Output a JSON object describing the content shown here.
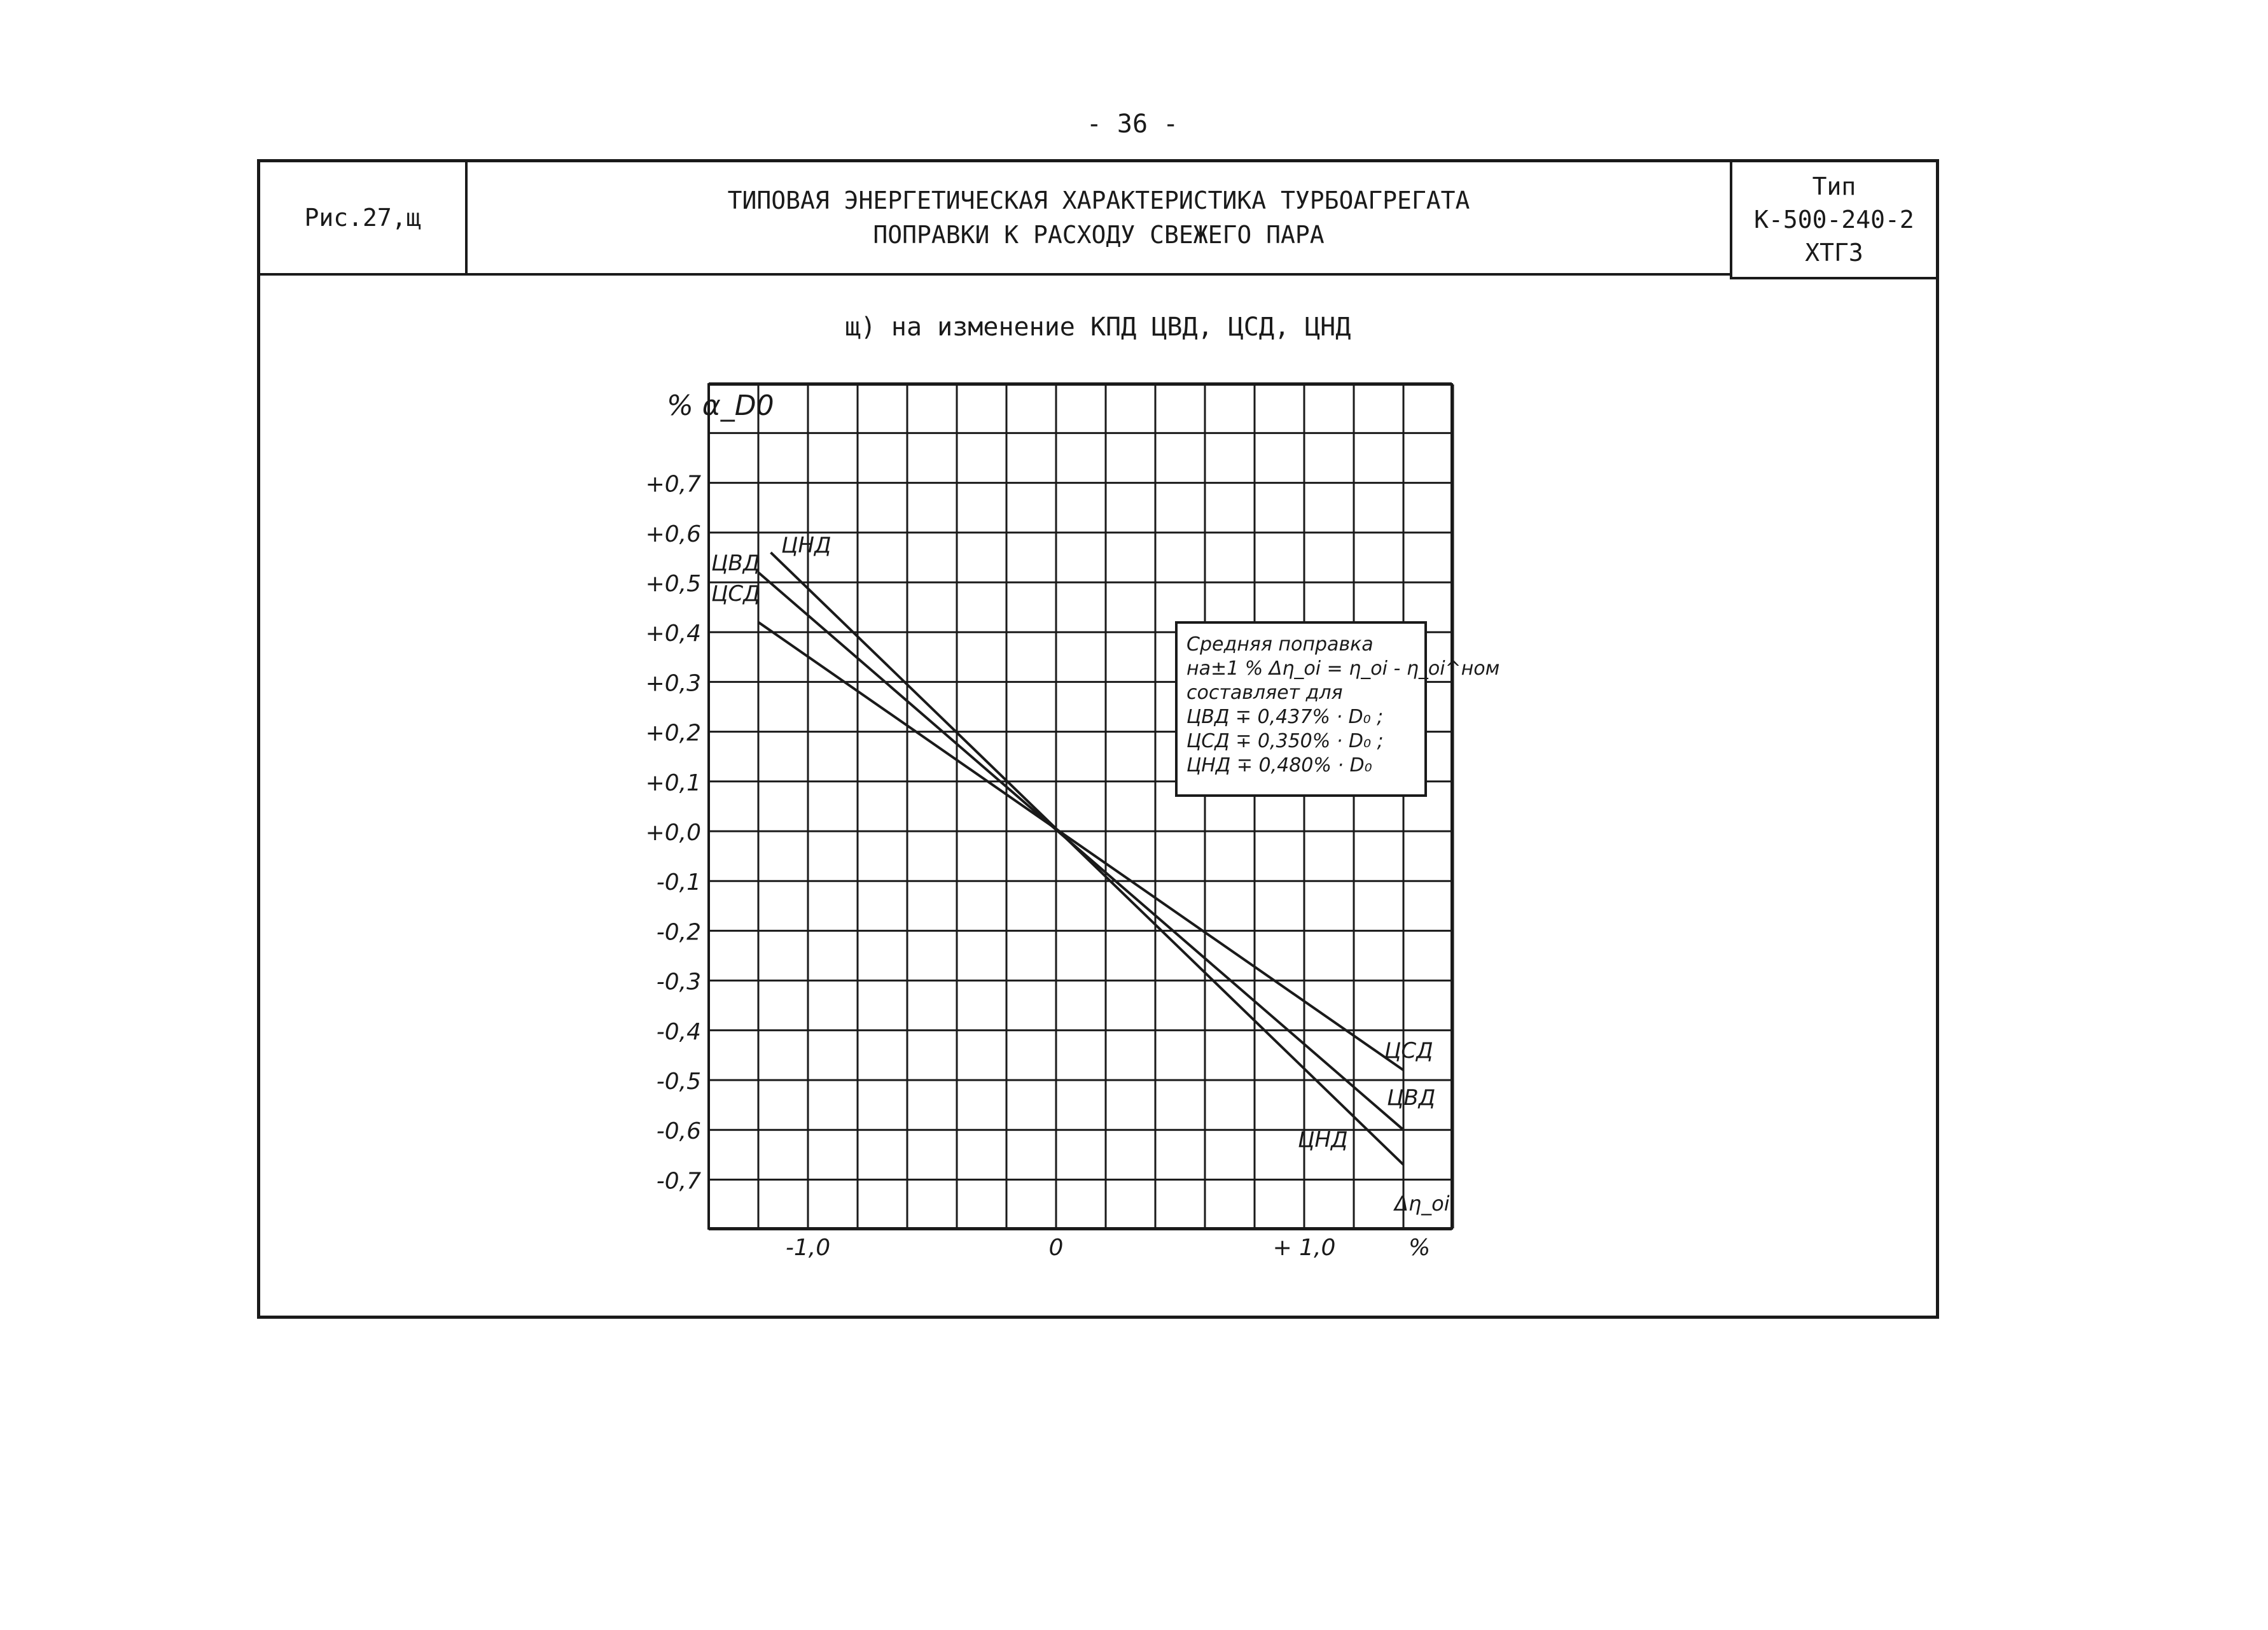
{
  "page": {
    "number": "- 36 -"
  },
  "header": {
    "fig_label": "Рис.27,щ",
    "title_line1": "ТИПОВАЯ ЭНЕРГЕТИЧЕСКАЯ ХАРАКТЕРИСТИКА ТУРБОАГРЕГАТА",
    "title_line2": "ПОПРАВКИ К РАСХОДУ СВЕЖЕГО ПАРА",
    "type_label": "Тип",
    "type_model": "К-500-240-2",
    "type_maker": "ХТГЗ"
  },
  "subtitle": "щ) на изменение КПД ЦВД, ЦСД, ЦНД",
  "note": {
    "line1": "Средняя поправка",
    "line2": "на±1 % Δη_oi = η_oi - η_oi^ном",
    "line3": "составляет для",
    "line4": "ЦВД ∓ 0,437% · D₀ ;",
    "line5": "ЦСД ∓ 0,350% · D₀ ;",
    "line6": "ЦНД ∓ 0,480% · D₀"
  },
  "chart_data": {
    "type": "line",
    "title": "щ) на изменение КПД ЦВД, ЦСД, ЦНД",
    "xlabel": "Δη_oi %",
    "ylabel": "% α_D0",
    "x_unit": "%",
    "y_unit": "%",
    "xlim": [
      -1.2,
      1.8
    ],
    "ylim": [
      -0.8,
      0.9
    ],
    "x_ticks": [
      -1.0,
      0,
      1.0
    ],
    "x_tick_labels": [
      "-1,0",
      "0",
      "+ 1,0"
    ],
    "y_ticks": [
      0.7,
      0.6,
      0.5,
      0.4,
      0.3,
      0.2,
      0.1,
      0.0,
      -0.1,
      -0.2,
      -0.3,
      -0.4,
      -0.5,
      -0.6,
      -0.7
    ],
    "y_tick_labels": [
      "+0,7",
      "+0,6",
      "+0,5",
      "+0,4",
      "+0,3",
      "+0,2",
      "+0,1",
      "+0,0",
      "-0,1",
      "-0,2",
      "-0,3",
      "-0,4",
      "-0,5",
      "-0,6",
      "-0,7"
    ],
    "grid": true,
    "series": [
      {
        "name": "ЦНД",
        "x": [
          -1.15,
          1.4
        ],
        "y": [
          0.56,
          -0.67
        ]
      },
      {
        "name": "ЦВД",
        "x": [
          -1.2,
          1.4
        ],
        "y": [
          0.52,
          -0.6
        ]
      },
      {
        "name": "ЦСД",
        "x": [
          -1.2,
          1.4
        ],
        "y": [
          0.42,
          -0.48
        ]
      }
    ]
  }
}
